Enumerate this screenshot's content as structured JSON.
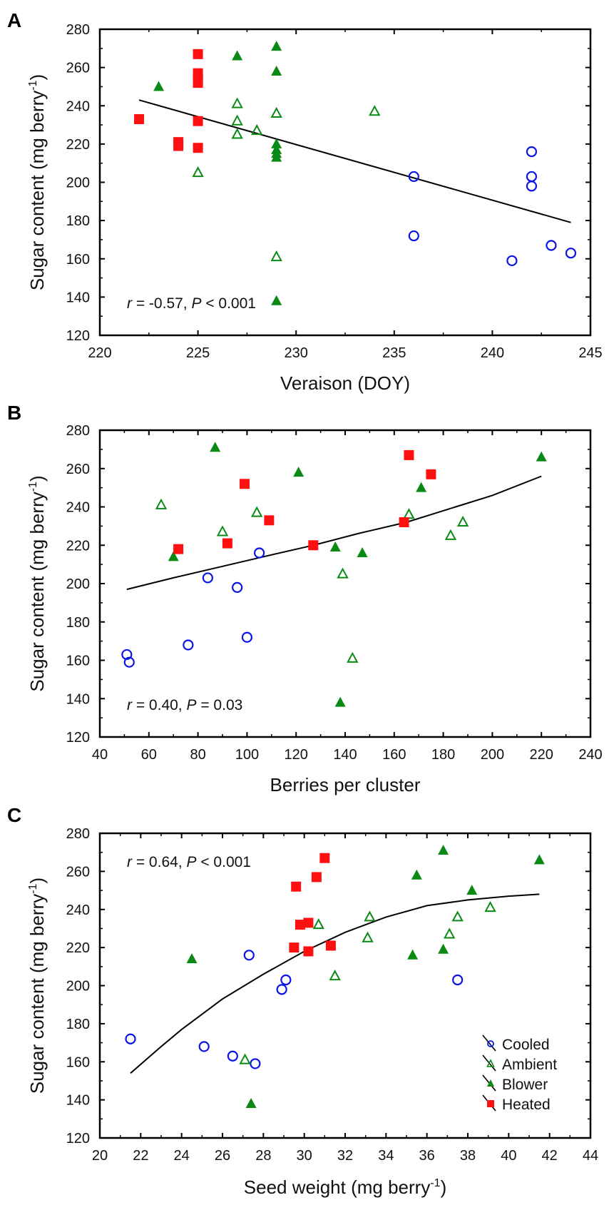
{
  "chart_data": [
    {
      "type": "scatter",
      "panel": "A",
      "xlabel": "Veraison (DOY)",
      "ylabel": "Sugar content (mg berry",
      "ylabel_sup": "-1",
      "ylabel_end": ")",
      "xlim": [
        220,
        245
      ],
      "ylim": [
        120,
        280
      ],
      "xticks": [
        220,
        225,
        230,
        235,
        240,
        245
      ],
      "yticks": [
        120,
        140,
        160,
        180,
        200,
        220,
        240,
        260,
        280
      ],
      "annotation": {
        "r_label": "r",
        "r_text": " = -0.57, ",
        "p_label": "P",
        "p_text": " < 0.001"
      },
      "annotation_position": "bottom-left",
      "series": [
        {
          "name": "Cooled",
          "points": [
            [
              236,
              203
            ],
            [
              236,
              172
            ],
            [
              241,
              159
            ],
            [
              242,
              216
            ],
            [
              242,
              203
            ],
            [
              242,
              198
            ],
            [
              243,
              167
            ],
            [
              244,
              163
            ]
          ]
        },
        {
          "name": "Ambient",
          "points": [
            [
              225,
              205
            ],
            [
              227,
              241
            ],
            [
              227,
              232
            ],
            [
              227,
              225
            ],
            [
              228,
              227
            ],
            [
              229,
              236
            ],
            [
              229,
              161
            ],
            [
              234,
              237
            ]
          ]
        },
        {
          "name": "Blower",
          "points": [
            [
              223,
              250
            ],
            [
              227,
              266
            ],
            [
              229,
              271
            ],
            [
              229,
              258
            ],
            [
              229,
              220
            ],
            [
              229,
              217
            ],
            [
              229,
              215
            ],
            [
              229,
              213
            ],
            [
              229,
              138
            ]
          ]
        },
        {
          "name": "Heated",
          "points": [
            [
              222,
              233
            ],
            [
              224,
              221
            ],
            [
              224,
              219
            ],
            [
              225,
              267
            ],
            [
              225,
              257
            ],
            [
              225,
              254
            ],
            [
              225,
              252
            ],
            [
              225,
              232
            ],
            [
              225,
              218
            ]
          ]
        }
      ],
      "trend": [
        [
          222,
          243
        ],
        [
          244,
          179
        ]
      ]
    },
    {
      "type": "scatter",
      "panel": "B",
      "xlabel": "Berries per cluster",
      "ylabel": "Sugar content (mg berry",
      "ylabel_sup": "-1",
      "ylabel_end": ")",
      "xlim": [
        40,
        240
      ],
      "ylim": [
        120,
        280
      ],
      "xticks": [
        40,
        60,
        80,
        100,
        120,
        140,
        160,
        180,
        200,
        220,
        240
      ],
      "yticks": [
        120,
        140,
        160,
        180,
        200,
        220,
        240,
        260,
        280
      ],
      "annotation": {
        "r_label": "r",
        "r_text": " = 0.40, ",
        "p_label": "P",
        "p_text": " = 0.03"
      },
      "annotation_position": "bottom-left",
      "series": [
        {
          "name": "Cooled",
          "points": [
            [
              51,
              163
            ],
            [
              52,
              159
            ],
            [
              76,
              168
            ],
            [
              84,
              203
            ],
            [
              96,
              198
            ],
            [
              100,
              172
            ],
            [
              105,
              216
            ]
          ]
        },
        {
          "name": "Ambient",
          "points": [
            [
              65,
              241
            ],
            [
              90,
              227
            ],
            [
              104,
              237
            ],
            [
              139,
              205
            ],
            [
              143,
              161
            ],
            [
              166,
              236
            ],
            [
              183,
              225
            ],
            [
              188,
              232
            ]
          ]
        },
        {
          "name": "Blower",
          "points": [
            [
              70,
              214
            ],
            [
              87,
              271
            ],
            [
              121,
              258
            ],
            [
              136,
              219
            ],
            [
              138,
              138
            ],
            [
              147,
              216
            ],
            [
              171,
              250
            ],
            [
              220,
              266
            ]
          ]
        },
        {
          "name": "Heated",
          "points": [
            [
              72,
              218
            ],
            [
              92,
              221
            ],
            [
              99,
              252
            ],
            [
              109,
              233
            ],
            [
              127,
              220
            ],
            [
              164,
              232
            ],
            [
              166,
              267
            ],
            [
              175,
              257
            ]
          ]
        }
      ],
      "trend": [
        [
          51,
          197
        ],
        [
          70,
          203
        ],
        [
          90,
          209
        ],
        [
          110,
          215
        ],
        [
          127,
          220
        ],
        [
          145,
          226
        ],
        [
          165,
          232
        ],
        [
          185,
          240
        ],
        [
          200,
          246
        ],
        [
          220,
          256
        ]
      ]
    },
    {
      "type": "scatter",
      "panel": "C",
      "xlabel": "Seed weight (mg berry",
      "xlabel_sup": "-1",
      "xlabel_end": ")",
      "ylabel": "Sugar content (mg berry",
      "ylabel_sup": "-1",
      "ylabel_end": ")",
      "xlim": [
        20,
        44
      ],
      "ylim": [
        120,
        280
      ],
      "xticks": [
        20,
        22,
        24,
        26,
        28,
        30,
        32,
        34,
        36,
        38,
        40,
        42,
        44
      ],
      "yticks": [
        120,
        140,
        160,
        180,
        200,
        220,
        240,
        260,
        280
      ],
      "annotation": {
        "r_label": "r",
        "r_text": " = 0.64, ",
        "p_label": "P",
        "p_text": " < 0.001"
      },
      "annotation_position": "top-left",
      "legend": {
        "position": "bottom-right",
        "entries": [
          "Cooled",
          "Ambient",
          "Blower",
          "Heated"
        ]
      },
      "series": [
        {
          "name": "Cooled",
          "points": [
            [
              21.5,
              172
            ],
            [
              25.1,
              168
            ],
            [
              26.5,
              163
            ],
            [
              27.3,
              216
            ],
            [
              27.6,
              159
            ],
            [
              28.9,
              198
            ],
            [
              29.1,
              203
            ],
            [
              37.5,
              203
            ]
          ]
        },
        {
          "name": "Ambient",
          "points": [
            [
              27.1,
              161
            ],
            [
              30.7,
              232
            ],
            [
              31.5,
              205
            ],
            [
              33.1,
              225
            ],
            [
              33.2,
              236
            ],
            [
              37.1,
              227
            ],
            [
              37.5,
              236
            ],
            [
              39.1,
              241
            ]
          ]
        },
        {
          "name": "Blower",
          "points": [
            [
              24.5,
              214
            ],
            [
              27.4,
              138
            ],
            [
              35.3,
              216
            ],
            [
              35.5,
              258
            ],
            [
              36.8,
              219
            ],
            [
              36.8,
              271
            ],
            [
              38.2,
              250
            ],
            [
              41.5,
              266
            ]
          ]
        },
        {
          "name": "Heated",
          "points": [
            [
              29.5,
              220
            ],
            [
              29.6,
              252
            ],
            [
              29.8,
              232
            ],
            [
              30.2,
              218
            ],
            [
              30.2,
              233
            ],
            [
              30.6,
              257
            ],
            [
              31.0,
              267
            ],
            [
              31.3,
              221
            ]
          ]
        }
      ],
      "trend": [
        [
          21.5,
          154
        ],
        [
          23,
          168
        ],
        [
          24,
          177
        ],
        [
          26,
          193
        ],
        [
          28,
          206
        ],
        [
          30,
          218
        ],
        [
          32,
          228
        ],
        [
          34,
          236
        ],
        [
          36,
          242
        ],
        [
          38,
          245
        ],
        [
          40,
          247
        ],
        [
          41.5,
          248
        ]
      ]
    }
  ],
  "colors": {
    "Cooled": "#0a14e6",
    "Ambient": "#0a8a14",
    "Blower": "#0a8a14",
    "Heated": "#ff1010",
    "trend": "#000000"
  }
}
